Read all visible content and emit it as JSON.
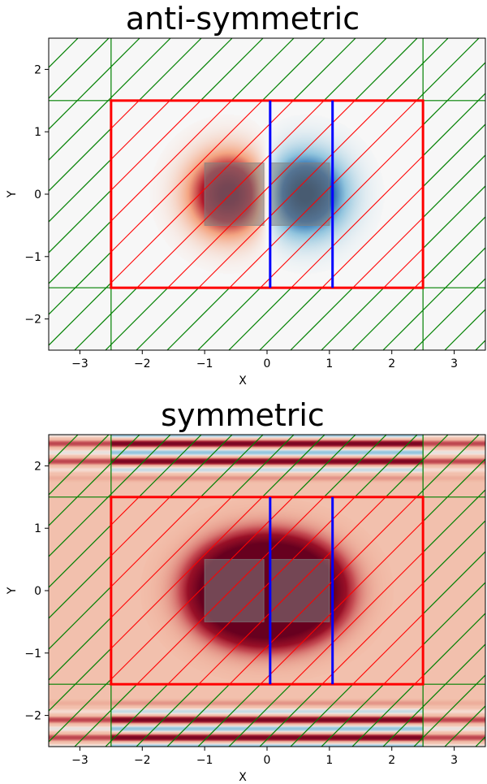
{
  "chart_data": [
    {
      "type": "heatmap",
      "title": "anti-symmetric",
      "xlabel": "X",
      "ylabel": "Y",
      "xlim": [
        -3.5,
        3.5
      ],
      "ylim": [
        -2.5,
        2.5
      ],
      "xticks": [
        -3,
        -2,
        -1,
        0,
        1,
        2,
        3
      ],
      "yticks": [
        -2,
        -1,
        0,
        1,
        2
      ],
      "xtick_labels": [
        "−3",
        "−2",
        "−1",
        "0",
        "1",
        "2",
        "3"
      ],
      "ytick_labels": [
        "−2",
        "−1",
        "0",
        "1",
        "2"
      ],
      "field": {
        "symmetry": "anti-symmetric",
        "background_color": "#f7f7f7",
        "lobes": [
          {
            "x": -0.6,
            "y": 0.0,
            "sx": 0.42,
            "sy": 0.42,
            "sign": 1
          },
          {
            "x": 0.6,
            "y": 0.0,
            "sx": 0.42,
            "sy": 0.42,
            "sign": -1
          }
        ],
        "stripes": false
      },
      "structures": [
        {
          "x0": -1.0,
          "x1": -0.05,
          "y0": -0.5,
          "y1": 0.5
        },
        {
          "x0": 0.05,
          "x1": 1.0,
          "y0": -0.5,
          "y1": 0.5
        }
      ],
      "simulation_box": {
        "x0": -2.5,
        "x1": 2.5,
        "y0": -1.5,
        "y1": 1.5,
        "color": "#ff0000"
      },
      "pml_boundary": {
        "x0": -2.5,
        "x1": 2.5,
        "y0": -1.5,
        "y1": 1.5,
        "color": "#008000"
      },
      "monitors": [
        {
          "x": 0.05,
          "y0": -1.5,
          "y1": 1.5,
          "color": "#0000ff"
        },
        {
          "x": 1.05,
          "y0": -1.5,
          "y1": 1.5,
          "color": "#0000ff"
        }
      ],
      "colormap": "RdBu"
    },
    {
      "type": "heatmap",
      "title": "symmetric",
      "xlabel": "X",
      "ylabel": "Y",
      "xlim": [
        -3.5,
        3.5
      ],
      "ylim": [
        -2.5,
        2.5
      ],
      "xticks": [
        -3,
        -2,
        -1,
        0,
        1,
        2,
        3
      ],
      "yticks": [
        -2,
        -1,
        0,
        1,
        2
      ],
      "xtick_labels": [
        "−3",
        "−2",
        "−1",
        "0",
        "1",
        "2",
        "3"
      ],
      "ytick_labels": [
        "−2",
        "−1",
        "0",
        "1",
        "2"
      ],
      "field": {
        "symmetry": "symmetric",
        "background_color": "#f2c0ad",
        "lobes": [
          {
            "x": -0.35,
            "y": 0.0,
            "sx": 0.6,
            "sy": 0.5,
            "sign": -1
          },
          {
            "x": 0.35,
            "y": 0.0,
            "sx": 0.6,
            "sy": 0.5,
            "sign": -1
          }
        ],
        "stripes": true
      },
      "structures": [
        {
          "x0": -1.0,
          "x1": -0.05,
          "y0": -0.5,
          "y1": 0.5
        },
        {
          "x0": 0.05,
          "x1": 1.0,
          "y0": -0.5,
          "y1": 0.5
        }
      ],
      "simulation_box": {
        "x0": -2.5,
        "x1": 2.5,
        "y0": -1.5,
        "y1": 1.5,
        "color": "#ff0000"
      },
      "pml_boundary": {
        "x0": -2.5,
        "x1": 2.5,
        "y0": -1.5,
        "y1": 1.5,
        "color": "#008000"
      },
      "monitors": [
        {
          "x": 0.05,
          "y0": -1.5,
          "y1": 1.5,
          "color": "#0000ff"
        },
        {
          "x": 1.05,
          "y0": -1.5,
          "y1": 1.5,
          "color": "#0000ff"
        }
      ],
      "colormap": "RdBu"
    }
  ]
}
